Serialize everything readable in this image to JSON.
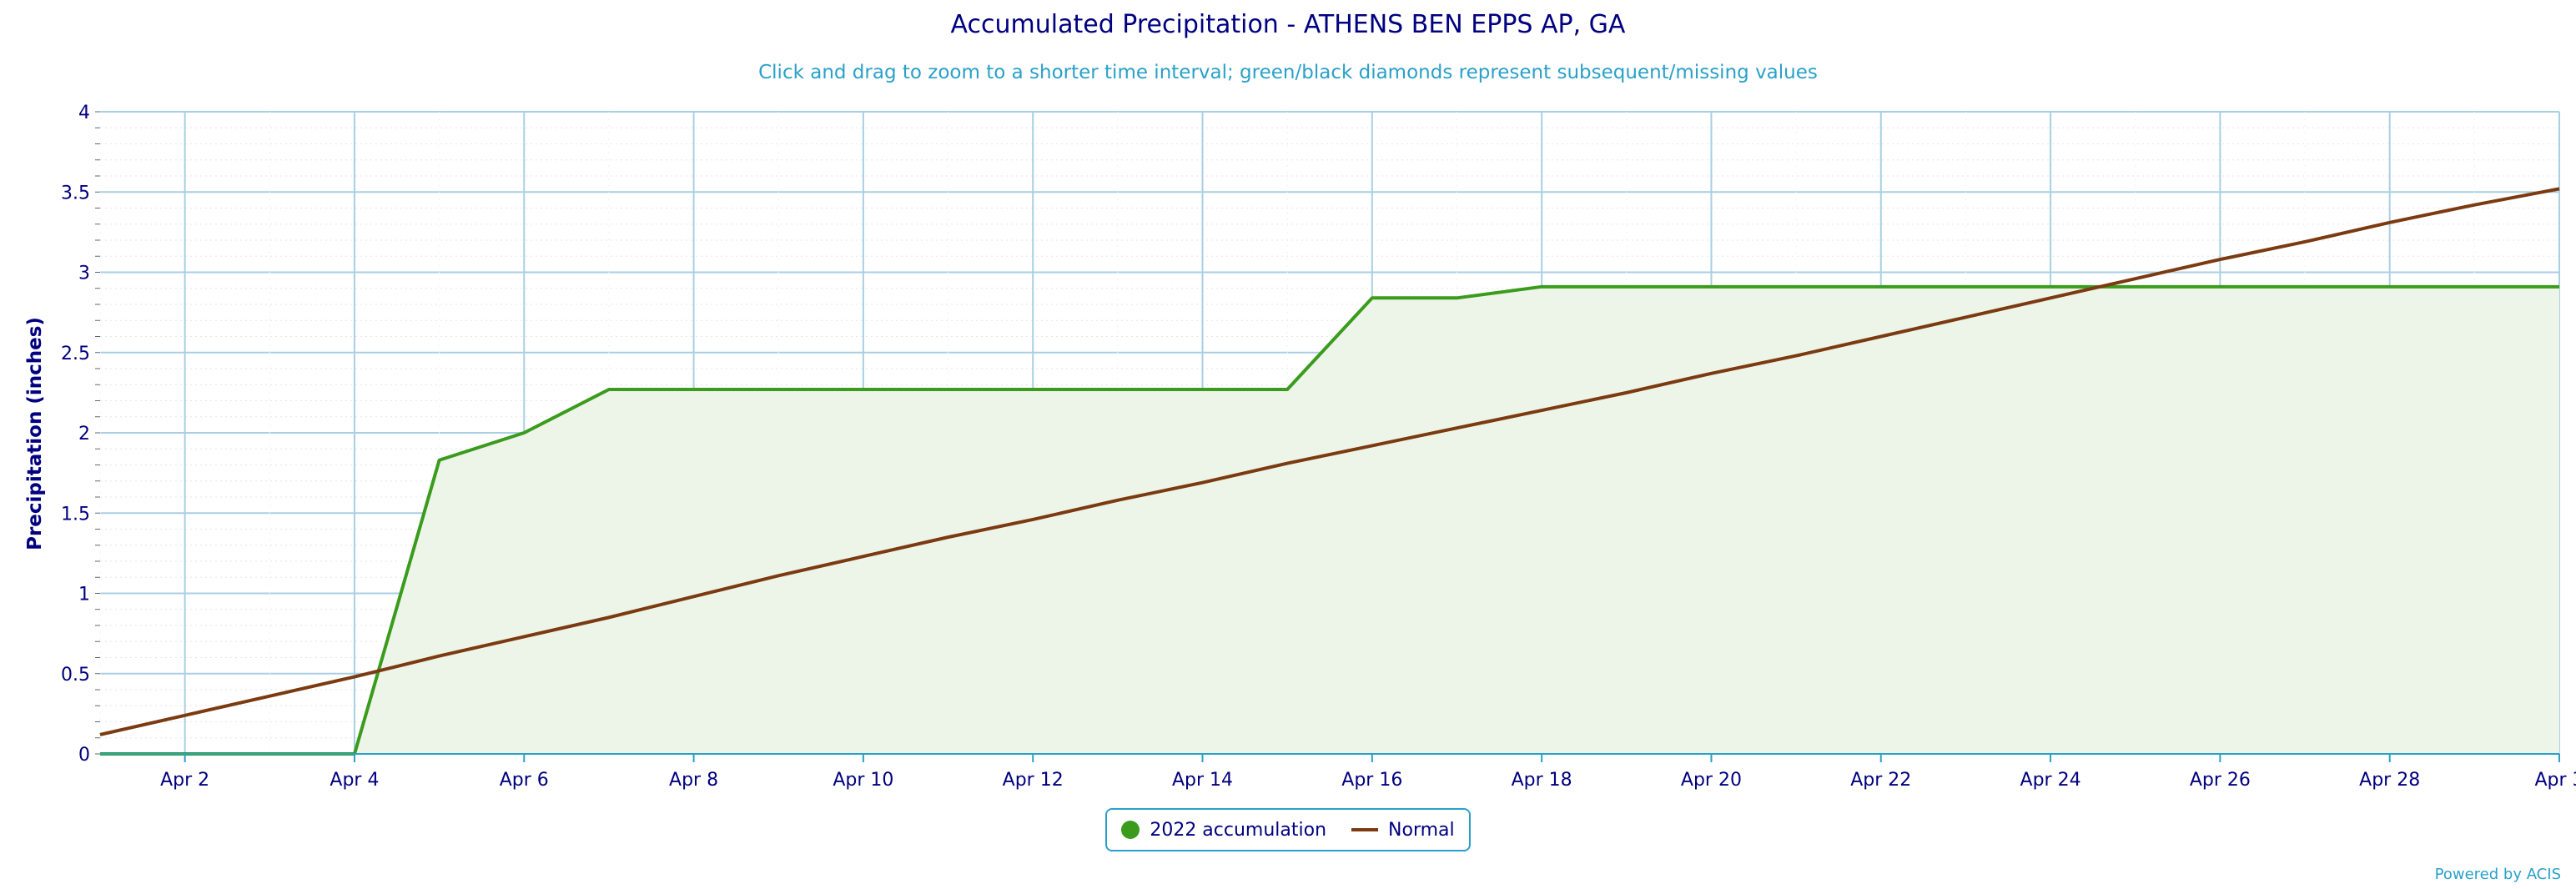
{
  "chart_data": {
    "type": "area",
    "title": "Accumulated Precipitation - ATHENS BEN EPPS AP, GA",
    "subtitle": "Click and drag to zoom to a shorter time interval; green/black diamonds represent subsequent/missing values",
    "ylabel": "Precipitation (inches)",
    "xlabel": "",
    "ylim": [
      0,
      4
    ],
    "yticks": [
      "0",
      "0.5",
      "1",
      "1.5",
      "2",
      "2.5",
      "3",
      "3.5",
      "4"
    ],
    "xticks": [
      "Apr 2",
      "Apr 4",
      "Apr 6",
      "Apr 8",
      "Apr 10",
      "Apr 12",
      "Apr 14",
      "Apr 16",
      "Apr 18",
      "Apr 20",
      "Apr 22",
      "Apr 24",
      "Apr 26",
      "Apr 28",
      "Apr 3"
    ],
    "x": [
      "Apr 1",
      "Apr 2",
      "Apr 3",
      "Apr 4",
      "Apr 5",
      "Apr 6",
      "Apr 7",
      "Apr 8",
      "Apr 9",
      "Apr 10",
      "Apr 11",
      "Apr 12",
      "Apr 13",
      "Apr 14",
      "Apr 15",
      "Apr 16",
      "Apr 17",
      "Apr 18",
      "Apr 19",
      "Apr 20",
      "Apr 21",
      "Apr 22",
      "Apr 23",
      "Apr 24",
      "Apr 25",
      "Apr 26",
      "Apr 27",
      "Apr 28",
      "Apr 29",
      "Apr 30"
    ],
    "grid": true,
    "legend_position": "bottom-center",
    "series": [
      {
        "name": "2022 accumulation",
        "color": "#3a9b1d",
        "fill": "#edf5e8",
        "values": [
          0,
          0,
          0,
          0,
          1.83,
          2.0,
          2.27,
          2.27,
          2.27,
          2.27,
          2.27,
          2.27,
          2.27,
          2.27,
          2.27,
          2.84,
          2.84,
          2.91,
          2.91,
          2.91,
          2.91,
          2.91,
          2.91,
          2.91,
          2.91,
          2.91,
          2.91,
          2.91,
          2.91,
          2.91
        ]
      },
      {
        "name": "Normal",
        "color": "#7b3a10",
        "values": [
          0.12,
          0.24,
          0.36,
          0.48,
          0.61,
          0.73,
          0.85,
          0.98,
          1.11,
          1.23,
          1.35,
          1.46,
          1.58,
          1.69,
          1.81,
          1.92,
          2.03,
          2.14,
          2.25,
          2.37,
          2.48,
          2.6,
          2.72,
          2.84,
          2.96,
          3.08,
          3.19,
          3.31,
          3.42,
          3.52
        ]
      }
    ]
  },
  "legend": {
    "item1": "2022 accumulation",
    "item2": "Normal"
  },
  "credit": "Powered by ACIS"
}
